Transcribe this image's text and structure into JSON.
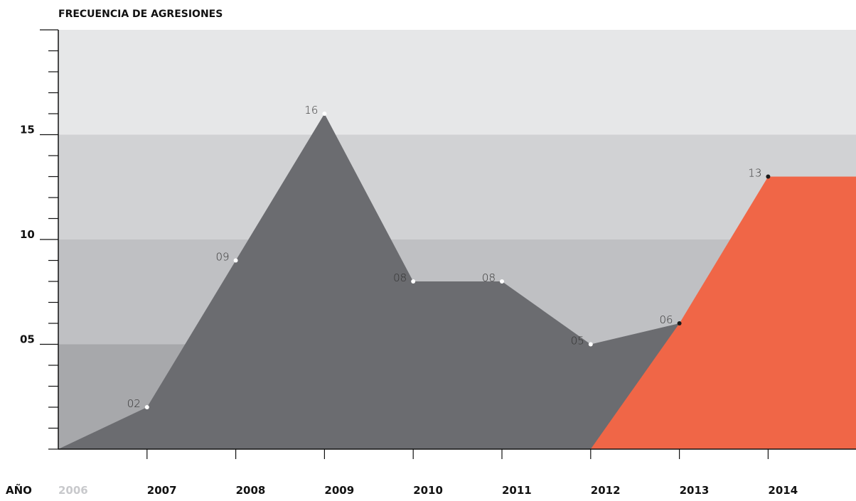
{
  "chart_data": {
    "type": "area",
    "title": "FRECUENCIA DE AGRESIONES",
    "xlabel": "AÑO",
    "ylabel": "",
    "ylim": [
      0,
      20
    ],
    "yticks": [
      {
        "value": 5,
        "label": "05"
      },
      {
        "value": 10,
        "label": "10"
      },
      {
        "value": 15,
        "label": "15"
      }
    ],
    "categories": [
      "2006",
      "2007",
      "2008",
      "2009",
      "2010",
      "2011",
      "2012",
      "2013",
      "2014"
    ],
    "muted_categories": [
      "2006"
    ],
    "series": [
      {
        "x": [
          "2006",
          "2007",
          "2008",
          "2009",
          "2010",
          "2011",
          "2012",
          "2013"
        ],
        "values": [
          0,
          2,
          9,
          16,
          8,
          8,
          5,
          6
        ],
        "labels": [
          "",
          "02",
          "09",
          "16",
          "08",
          "08",
          "05",
          "06"
        ],
        "color": "#6b6c70"
      },
      {
        "x": [
          "2012",
          "2013",
          "2014",
          "2015"
        ],
        "values": [
          0,
          6,
          13,
          13
        ],
        "labels": [
          "",
          "",
          "13",
          ""
        ],
        "color": "#f06647"
      }
    ],
    "bands": [
      {
        "from": 0,
        "to": 5,
        "color": "#a7a8ab"
      },
      {
        "from": 5,
        "to": 10,
        "color": "#bfc0c3"
      },
      {
        "from": 10,
        "to": 15,
        "color": "#d1d2d4"
      },
      {
        "from": 15,
        "to": 20,
        "color": "#e6e7e8"
      }
    ],
    "grid": false,
    "legend": "none"
  }
}
